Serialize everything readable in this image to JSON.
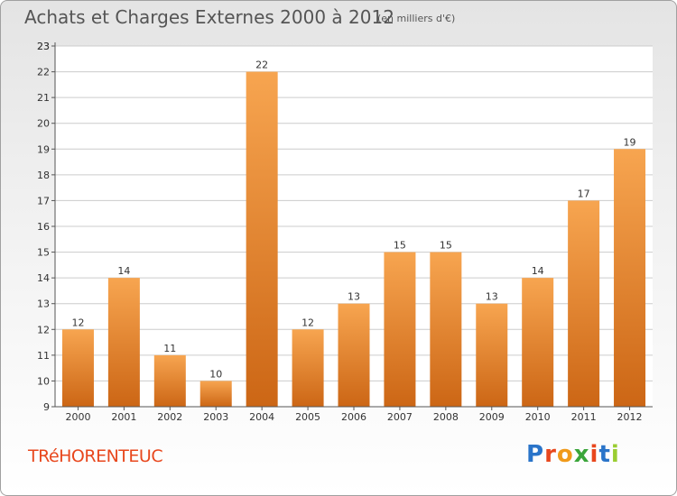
{
  "header": {
    "title": "Achats et Charges Externes 2000 à 2012",
    "subtitle": "(en milliers d'€)"
  },
  "footer": {
    "commune": "TRéHORENTEUC",
    "logo": [
      "P",
      "r",
      "o",
      "x",
      "i",
      "t",
      "i"
    ]
  },
  "chart_data": {
    "type": "bar",
    "title": "Achats et Charges Externes 2000 à 2012",
    "subtitle": "(en milliers d'€)",
    "categories": [
      "2000",
      "2001",
      "2002",
      "2003",
      "2004",
      "2005",
      "2006",
      "2007",
      "2008",
      "2009",
      "2010",
      "2011",
      "2012"
    ],
    "values": [
      12,
      14,
      11,
      10,
      22,
      12,
      13,
      15,
      15,
      13,
      14,
      17,
      19
    ],
    "ylim": [
      9,
      23
    ],
    "yticks": [
      "9",
      "10",
      "11",
      "12",
      "13",
      "14",
      "15",
      "16",
      "17",
      "18",
      "19",
      "20",
      "21",
      "22",
      "23",
      "23"
    ],
    "grid": true,
    "colors": {
      "bar_light": "#f7a550",
      "bar_dark": "#cc6615",
      "grid": "#cccccc",
      "axis": "#555555"
    }
  }
}
